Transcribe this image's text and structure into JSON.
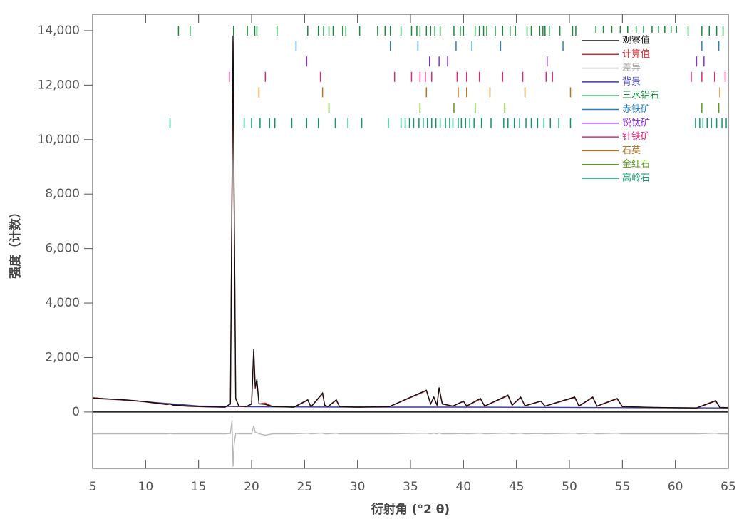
{
  "chart_data": {
    "type": "line",
    "x_label": "衍射角 (°2 θ)",
    "y_label": "强度（计数）",
    "xlim": [
      5,
      65
    ],
    "xticks": [
      5,
      10,
      15,
      20,
      25,
      30,
      35,
      40,
      45,
      50,
      55,
      60,
      65
    ],
    "ylim": [
      -2070,
      14600
    ],
    "yticks": [
      0,
      {
        "value": 2000,
        "label": "2,000"
      },
      {
        "value": 4000,
        "label": "4,000"
      },
      {
        "value": 6000,
        "label": "6,000"
      },
      {
        "value": 8000,
        "label": "8,000"
      },
      {
        "value": 10000,
        "label": "10,000"
      },
      {
        "value": 12000,
        "label": "12,000"
      },
      {
        "value": 14000,
        "label": "14,000"
      }
    ],
    "x": [
      5,
      6,
      7,
      8,
      9,
      10,
      11,
      12,
      12.3,
      12.6,
      14,
      16,
      17.5,
      18.0,
      18.15,
      18.25,
      18.35,
      18.5,
      18.8,
      19.5,
      20.0,
      20.2,
      20.35,
      20.5,
      20.7,
      21.3,
      22,
      24,
      25.3,
      25.6,
      26.5,
      26.7,
      26.9,
      27.2,
      28.0,
      28.3,
      30,
      33,
      36.5,
      36.9,
      37.2,
      37.5,
      37.7,
      38.0,
      39,
      40,
      40.3,
      41.6,
      42,
      44.2,
      44.6,
      45.4,
      45.8,
      47.3,
      47.7,
      50.5,
      50.9,
      52.2,
      52.6,
      54.5,
      55,
      58,
      62,
      63.8,
      64.2,
      65
    ],
    "series": [
      {
        "name": "观察值",
        "color": "#111111",
        "values": [
          520,
          490,
          470,
          450,
          420,
          380,
          330,
          280,
          300,
          260,
          220,
          190,
          180,
          300,
          8000,
          13800,
          8000,
          500,
          220,
          200,
          300,
          2300,
          900,
          1200,
          300,
          280,
          200,
          180,
          450,
          190,
          600,
          700,
          250,
          200,
          450,
          200,
          180,
          200,
          800,
          300,
          550,
          250,
          900,
          300,
          220,
          400,
          220,
          500,
          220,
          620,
          250,
          550,
          230,
          400,
          220,
          550,
          220,
          550,
          220,
          500,
          200,
          170,
          150,
          420,
          170,
          160
        ]
      },
      {
        "name": "计算值",
        "color": "#e0262b",
        "values": [
          500,
          480,
          460,
          440,
          410,
          370,
          320,
          270,
          290,
          250,
          210,
          185,
          175,
          290,
          7900,
          13600,
          7700,
          480,
          210,
          195,
          290,
          2200,
          850,
          1150,
          300,
          330,
          200,
          175,
          430,
          185,
          580,
          680,
          240,
          195,
          430,
          195,
          175,
          195,
          780,
          290,
          530,
          245,
          870,
          290,
          215,
          390,
          215,
          480,
          215,
          600,
          245,
          530,
          225,
          390,
          215,
          530,
          215,
          530,
          215,
          480,
          195,
          165,
          145,
          400,
          165,
          155
        ]
      },
      {
        "name": "差异",
        "color": "#b8b8b8",
        "values": [
          -800,
          -800,
          -800,
          -800,
          -800,
          -800,
          -800,
          -800,
          -790,
          -800,
          -800,
          -800,
          -800,
          -790,
          -300,
          -2000,
          -1200,
          -780,
          -800,
          -800,
          -800,
          -500,
          -750,
          -760,
          -800,
          -850,
          -800,
          -800,
          -780,
          -800,
          -780,
          -780,
          -800,
          -800,
          -780,
          -800,
          -800,
          -800,
          -780,
          -800,
          -780,
          -800,
          -770,
          -800,
          -800,
          -790,
          -800,
          -780,
          -800,
          -780,
          -800,
          -780,
          -800,
          -790,
          -800,
          -780,
          -800,
          -780,
          -800,
          -780,
          -800,
          -800,
          -800,
          -780,
          -800,
          -800
        ]
      },
      {
        "name": "背景",
        "color": "#3a3aa8",
        "x": [
          5,
          10,
          15,
          20,
          30,
          40,
          50,
          60,
          65
        ],
        "values": [
          520,
          380,
          220,
          190,
          180,
          180,
          170,
          155,
          150
        ]
      }
    ],
    "phases": [
      {
        "name": "三水铝石",
        "color": "#1a8a3c",
        "ticks": [
          13.1,
          14.2,
          18.3,
          19.6,
          20.3,
          20.5,
          22.4,
          25.3,
          26.3,
          26.8,
          27.3,
          27.7,
          28.6,
          28.9,
          30.2,
          31.9,
          32.6,
          33.1,
          34.1,
          35.1,
          35.6,
          35.9,
          36.5,
          36.9,
          37.3,
          37.8,
          39.1,
          39.7,
          40.0,
          41.1,
          41.5,
          41.9,
          42.2,
          43.0,
          43.7,
          44.4,
          44.9,
          46.0,
          46.4,
          47.2,
          47.5,
          47.7,
          48.1,
          49.1,
          50.3,
          50.6,
          52.5,
          53.2,
          54.0,
          54.8,
          55.5,
          56.3,
          57.0,
          57.8,
          58.4,
          59.0,
          59.6,
          60.1,
          61.2,
          62.5,
          63.2,
          63.9,
          64.5
        ]
      },
      {
        "name": "赤铁矿",
        "color": "#2a7fc0",
        "ticks": [
          24.2,
          33.1,
          35.7,
          39.3,
          40.8,
          43.5,
          49.4,
          62.5,
          64.1
        ]
      },
      {
        "name": "锐钛矿",
        "color": "#8a2be2",
        "ticks": [
          25.2,
          36.8,
          37.7,
          38.5,
          47.9,
          62.0,
          62.7
        ]
      },
      {
        "name": "针铁矿",
        "color": "#e0267a",
        "ticks": [
          17.9,
          21.3,
          26.5,
          33.5,
          35.1,
          35.9,
          36.4,
          37.0,
          39.4,
          40.3,
          41.5,
          43.7,
          45.6,
          47.8,
          48.4,
          61.5,
          62.5,
          63.7,
          64.7
        ]
      },
      {
        "name": "石英",
        "color": "#b8741a",
        "ticks": [
          20.7,
          26.7,
          36.5,
          39.5,
          40.3,
          42.5,
          45.8,
          50.1,
          64.2
        ]
      },
      {
        "name": "金红石",
        "color": "#5c9a1e",
        "ticks": [
          27.3,
          35.9,
          39.1,
          41.1,
          43.9,
          62.5,
          64.1
        ]
      },
      {
        "name": "高岭石",
        "color": "#0f9a6a",
        "ticks": [
          12.3,
          19.3,
          20.0,
          20.8,
          21.7,
          22.2,
          23.8,
          25.2,
          26.3,
          27.9,
          29.1,
          30.4,
          32.9,
          34.1,
          34.5,
          34.9,
          35.3,
          35.8,
          36.2,
          36.6,
          37.0,
          37.4,
          37.8,
          38.3,
          38.7,
          39.0,
          39.5,
          39.8,
          40.2,
          40.6,
          41.0,
          41.7,
          42.6,
          43.8,
          44.2,
          44.8,
          45.3,
          45.9,
          46.4,
          47.0,
          47.6,
          48.2,
          49.0,
          50.1,
          61.9,
          62.3,
          62.6,
          63.0,
          63.4,
          63.9,
          64.4,
          64.8
        ]
      }
    ]
  }
}
